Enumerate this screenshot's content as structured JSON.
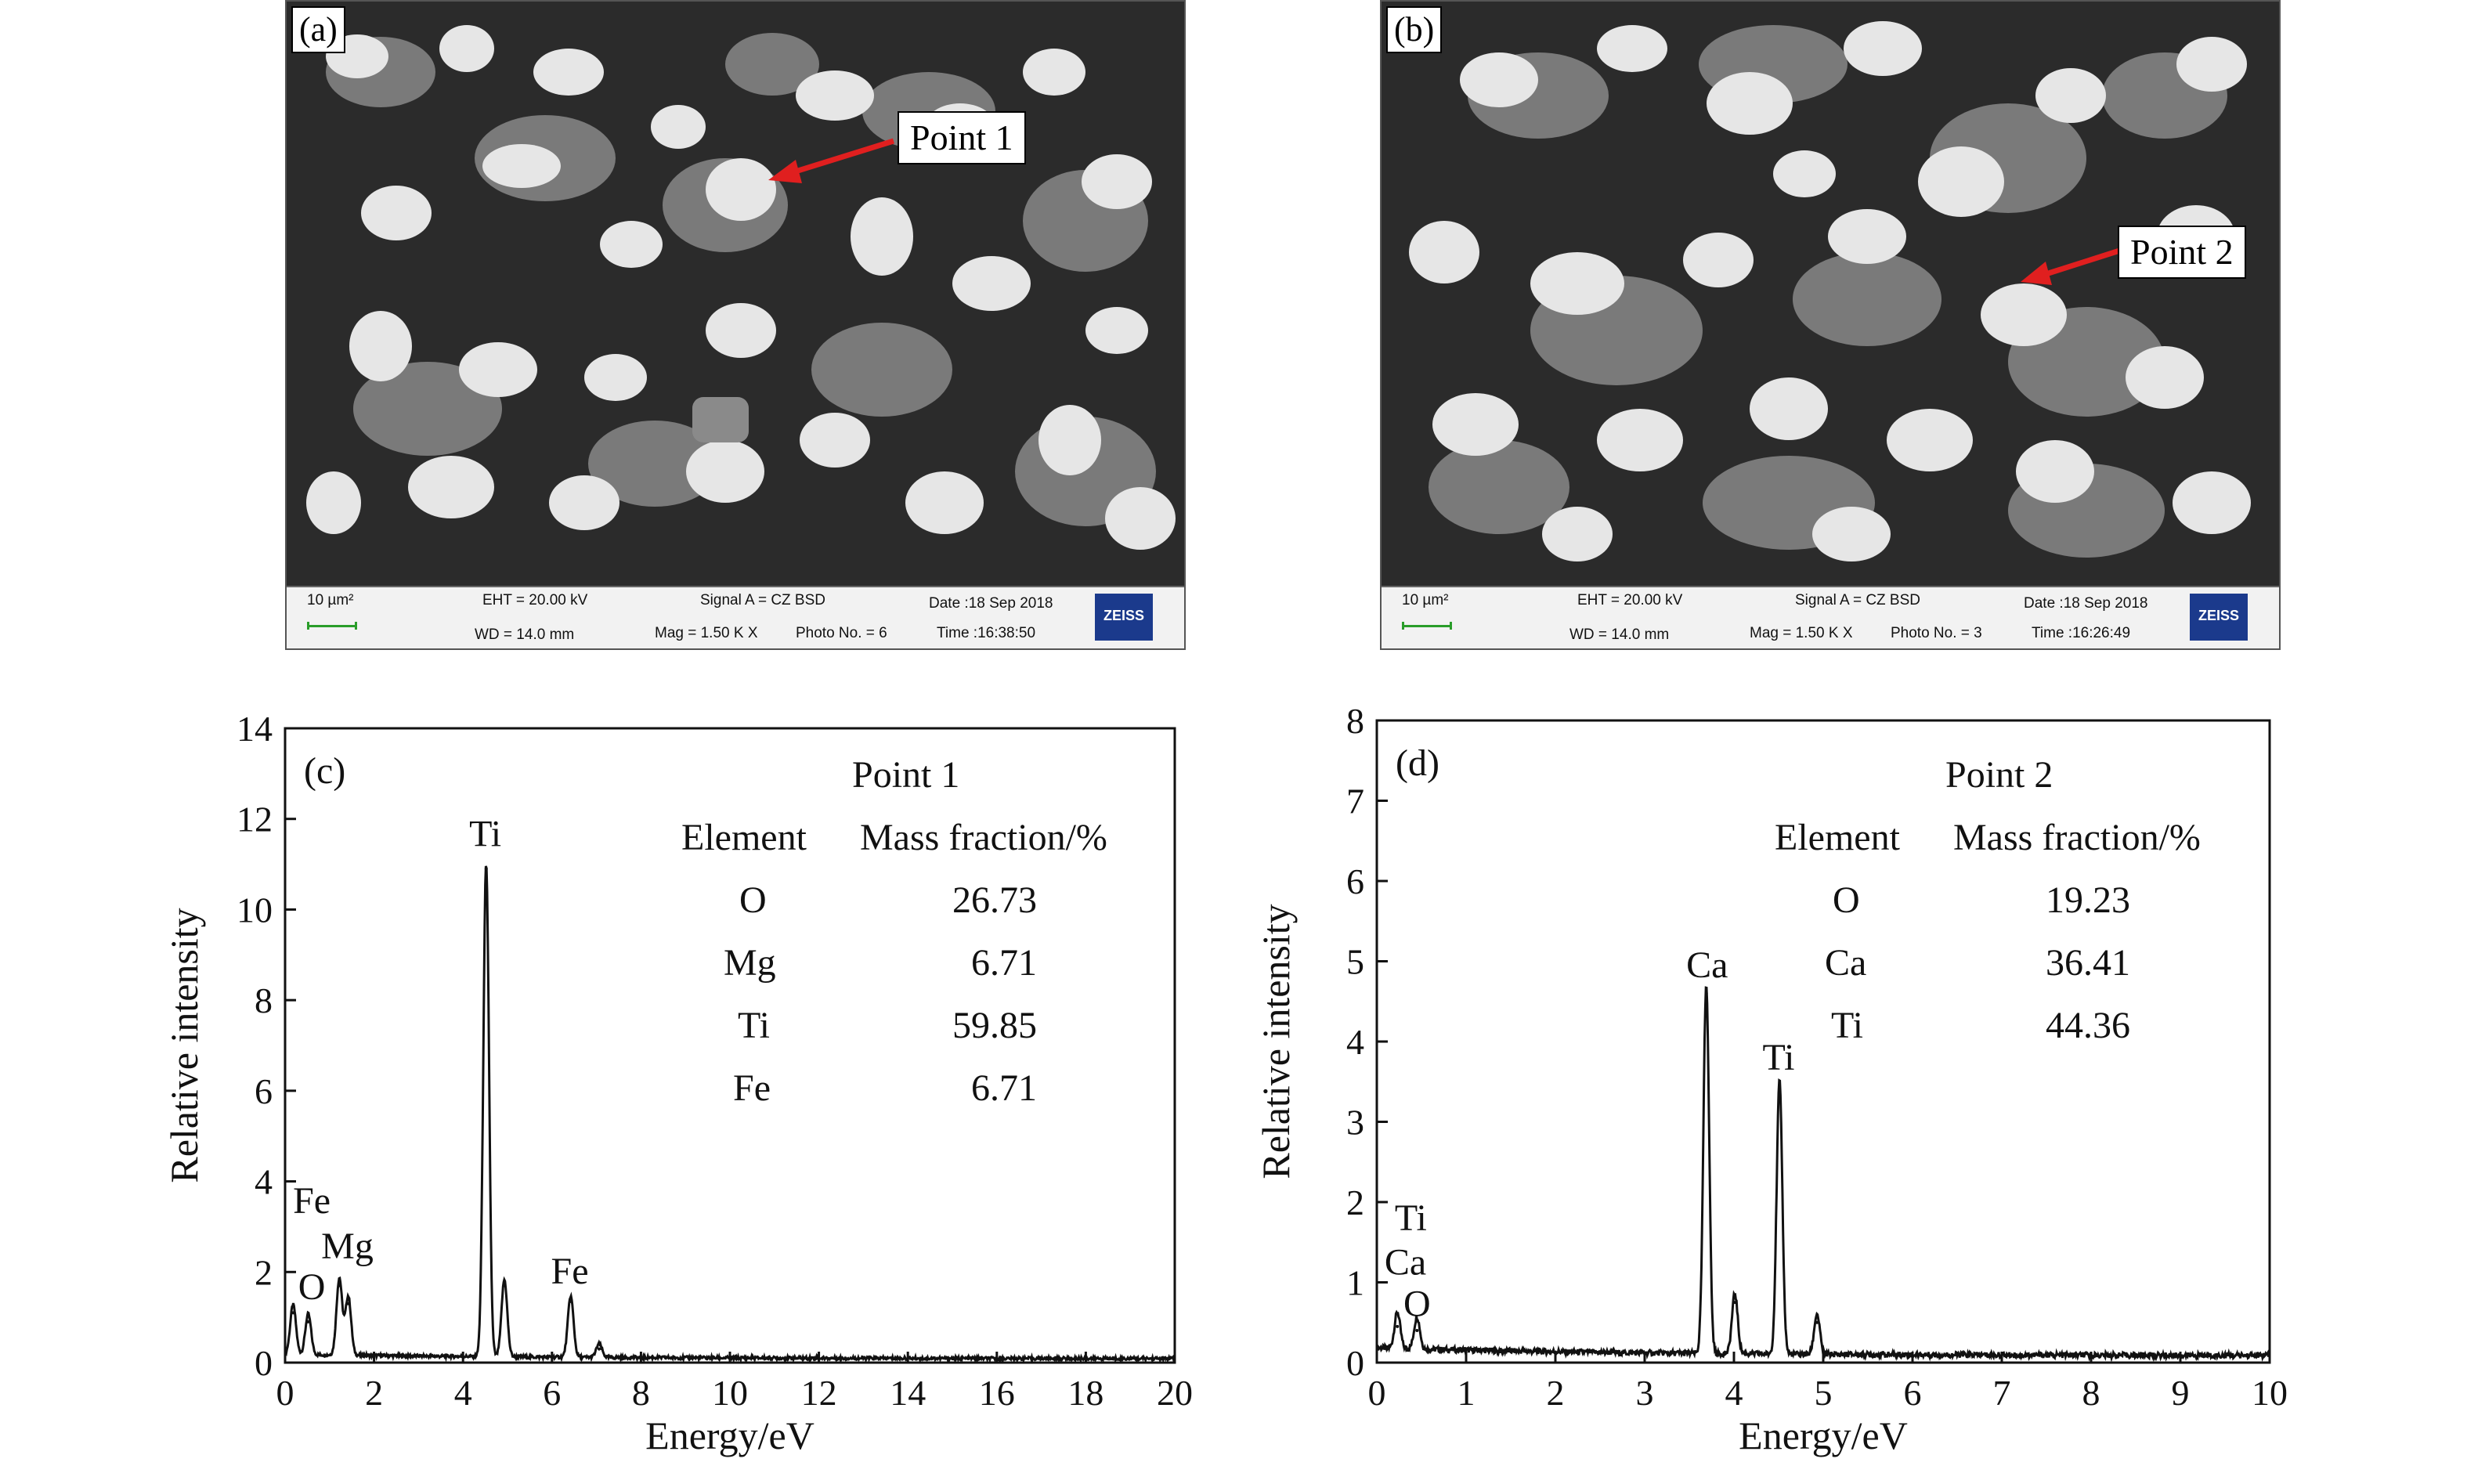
{
  "panels": {
    "a": {
      "label": "(a)",
      "callout": "Point 1",
      "databar": {
        "scale": "10 µm²",
        "eht": "EHT = 20.00 kV",
        "wd": "WD = 14.0 mm",
        "signal": "Signal A = CZ BSD",
        "mag": "Mag =   1.50 K X",
        "photo": "Photo No. = 6",
        "date": "Date :18 Sep 2018",
        "time": "Time :16:38:50",
        "logo": "ZEISS"
      }
    },
    "b": {
      "label": "(b)",
      "callout": "Point 2",
      "databar": {
        "scale": "10 µm²",
        "eht": "EHT = 20.00 kV",
        "wd": "WD = 14.0 mm",
        "signal": "Signal A = CZ BSD",
        "mag": "Mag =   1.50 K X",
        "photo": "Photo No. = 3",
        "date": "Date :18 Sep 2018",
        "time": "Time :16:26:49",
        "logo": "ZEISS"
      }
    }
  },
  "chart_data": [
    {
      "type": "line",
      "panel_label": "(c)",
      "xlabel": "Energy/eV",
      "ylabel": "Relative intensity",
      "xlim": [
        0,
        20
      ],
      "ylim": [
        0,
        14
      ],
      "xticks": [
        0,
        2,
        4,
        6,
        8,
        10,
        12,
        14,
        16,
        18,
        20
      ],
      "yticks": [
        0,
        2,
        4,
        6,
        8,
        10,
        12,
        14
      ],
      "peaks": [
        {
          "x": 0.18,
          "y": 1.1
        },
        {
          "x": 0.52,
          "y": 0.9
        },
        {
          "x": 1.22,
          "y": 1.7
        },
        {
          "x": 1.42,
          "y": 1.3
        },
        {
          "x": 4.52,
          "y": 10.9
        },
        {
          "x": 4.93,
          "y": 1.7
        },
        {
          "x": 6.42,
          "y": 1.35
        },
        {
          "x": 7.06,
          "y": 0.3
        }
      ],
      "peak_labels": [
        {
          "text": "Ti",
          "x": 4.5,
          "y": 11.4
        },
        {
          "text": "Fe",
          "x": 6.4,
          "y": 1.75
        },
        {
          "text": "O",
          "x": 0.6,
          "y": 1.4
        },
        {
          "text": "Mg",
          "x": 1.4,
          "y": 2.3
        },
        {
          "text": "Fe",
          "x": 0.6,
          "y": 3.3
        }
      ],
      "table": {
        "title": "Point 1",
        "headers": [
          "Element",
          "Mass fraction/%"
        ],
        "rows": [
          [
            "O",
            "26.73"
          ],
          [
            "Mg",
            "6.71"
          ],
          [
            "Ti",
            "59.85"
          ],
          [
            "Fe",
            "6.71"
          ]
        ]
      }
    },
    {
      "type": "line",
      "panel_label": "(d)",
      "xlabel": "Energy/eV",
      "ylabel": "Relative intensity",
      "xlim": [
        0,
        10
      ],
      "ylim": [
        0,
        8
      ],
      "xticks": [
        0,
        1,
        2,
        3,
        4,
        5,
        6,
        7,
        8,
        9,
        10
      ],
      "yticks": [
        0,
        1,
        2,
        3,
        4,
        5,
        6,
        7,
        8
      ],
      "peaks": [
        {
          "x": 0.23,
          "y": 0.45
        },
        {
          "x": 0.45,
          "y": 0.4
        },
        {
          "x": 3.69,
          "y": 4.6
        },
        {
          "x": 4.01,
          "y": 0.75
        },
        {
          "x": 4.51,
          "y": 3.4
        },
        {
          "x": 4.93,
          "y": 0.5
        }
      ],
      "peak_labels": [
        {
          "text": "Ca",
          "x": 3.7,
          "y": 4.8
        },
        {
          "text": "Ti",
          "x": 4.5,
          "y": 3.65
        },
        {
          "text": "Ti",
          "x": 0.38,
          "y": 1.65
        },
        {
          "text": "Ca",
          "x": 0.32,
          "y": 1.1
        },
        {
          "text": "O",
          "x": 0.45,
          "y": 0.58
        }
      ],
      "table": {
        "title": "Point 2",
        "headers": [
          "Element",
          "Mass fraction/%"
        ],
        "rows": [
          [
            "O",
            "19.23"
          ],
          [
            "Ca",
            "36.41"
          ],
          [
            "Ti",
            "44.36"
          ]
        ]
      }
    }
  ]
}
